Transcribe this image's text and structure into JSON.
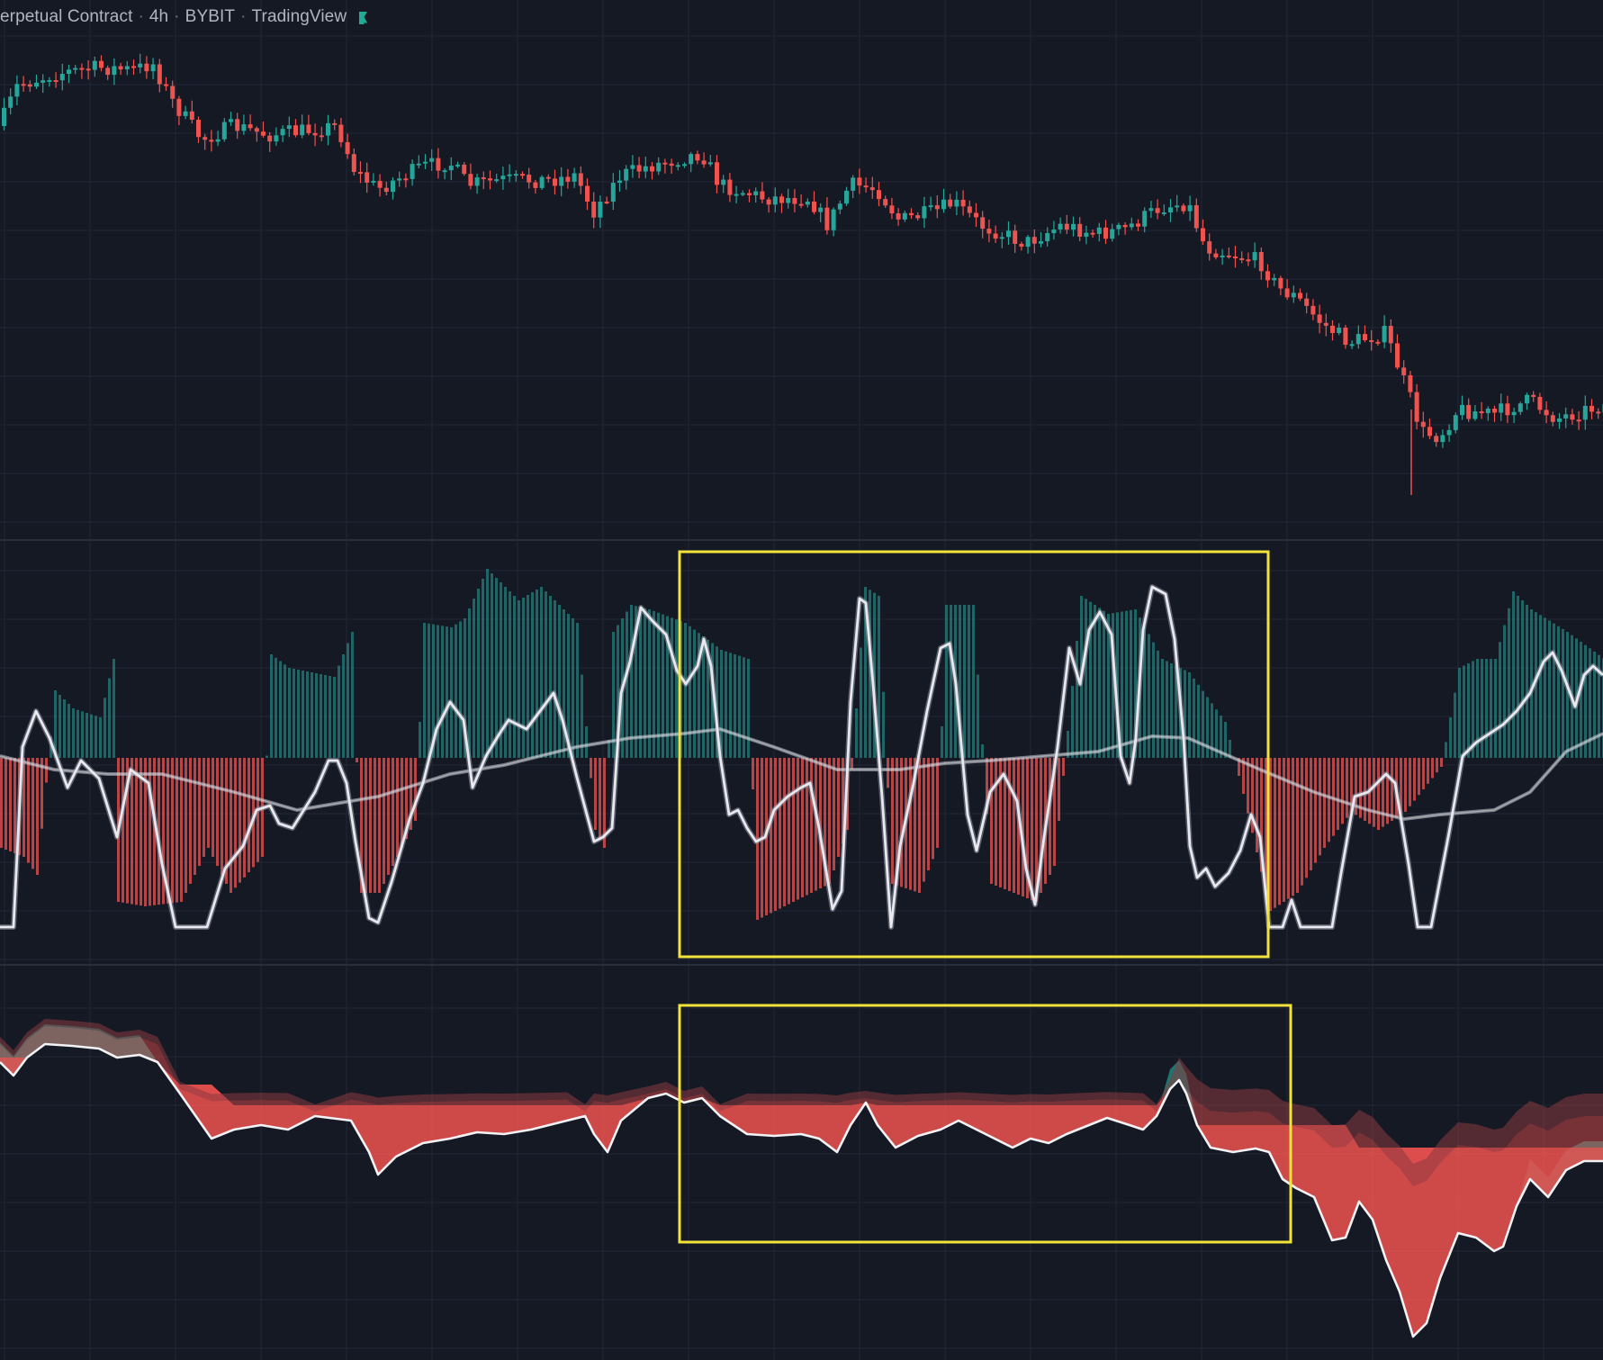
{
  "legend": {
    "symbol_text": "erpetual Contract",
    "interval": "4h",
    "exchange": "BYBIT",
    "provider": "TradingView",
    "separator": "·"
  },
  "icons": {
    "status_flag": "flag-icon"
  },
  "colors": {
    "background": "#151924",
    "grid": "#232837",
    "pane_divider": "#2a2e39",
    "bull": "#26a69a",
    "bear": "#ef5350",
    "oscillator_line": "#e8e8ee",
    "highlight_box": "#f2e33a"
  },
  "panes": [
    {
      "name": "price",
      "type": "candlestick"
    },
    {
      "name": "oscillator",
      "type": "histogram-with-lines"
    },
    {
      "name": "flow",
      "type": "area"
    }
  ],
  "annotations": [
    {
      "name": "highlight-box-oscillator",
      "pane": "oscillator"
    },
    {
      "name": "highlight-box-flow",
      "pane": "flow"
    }
  ]
}
